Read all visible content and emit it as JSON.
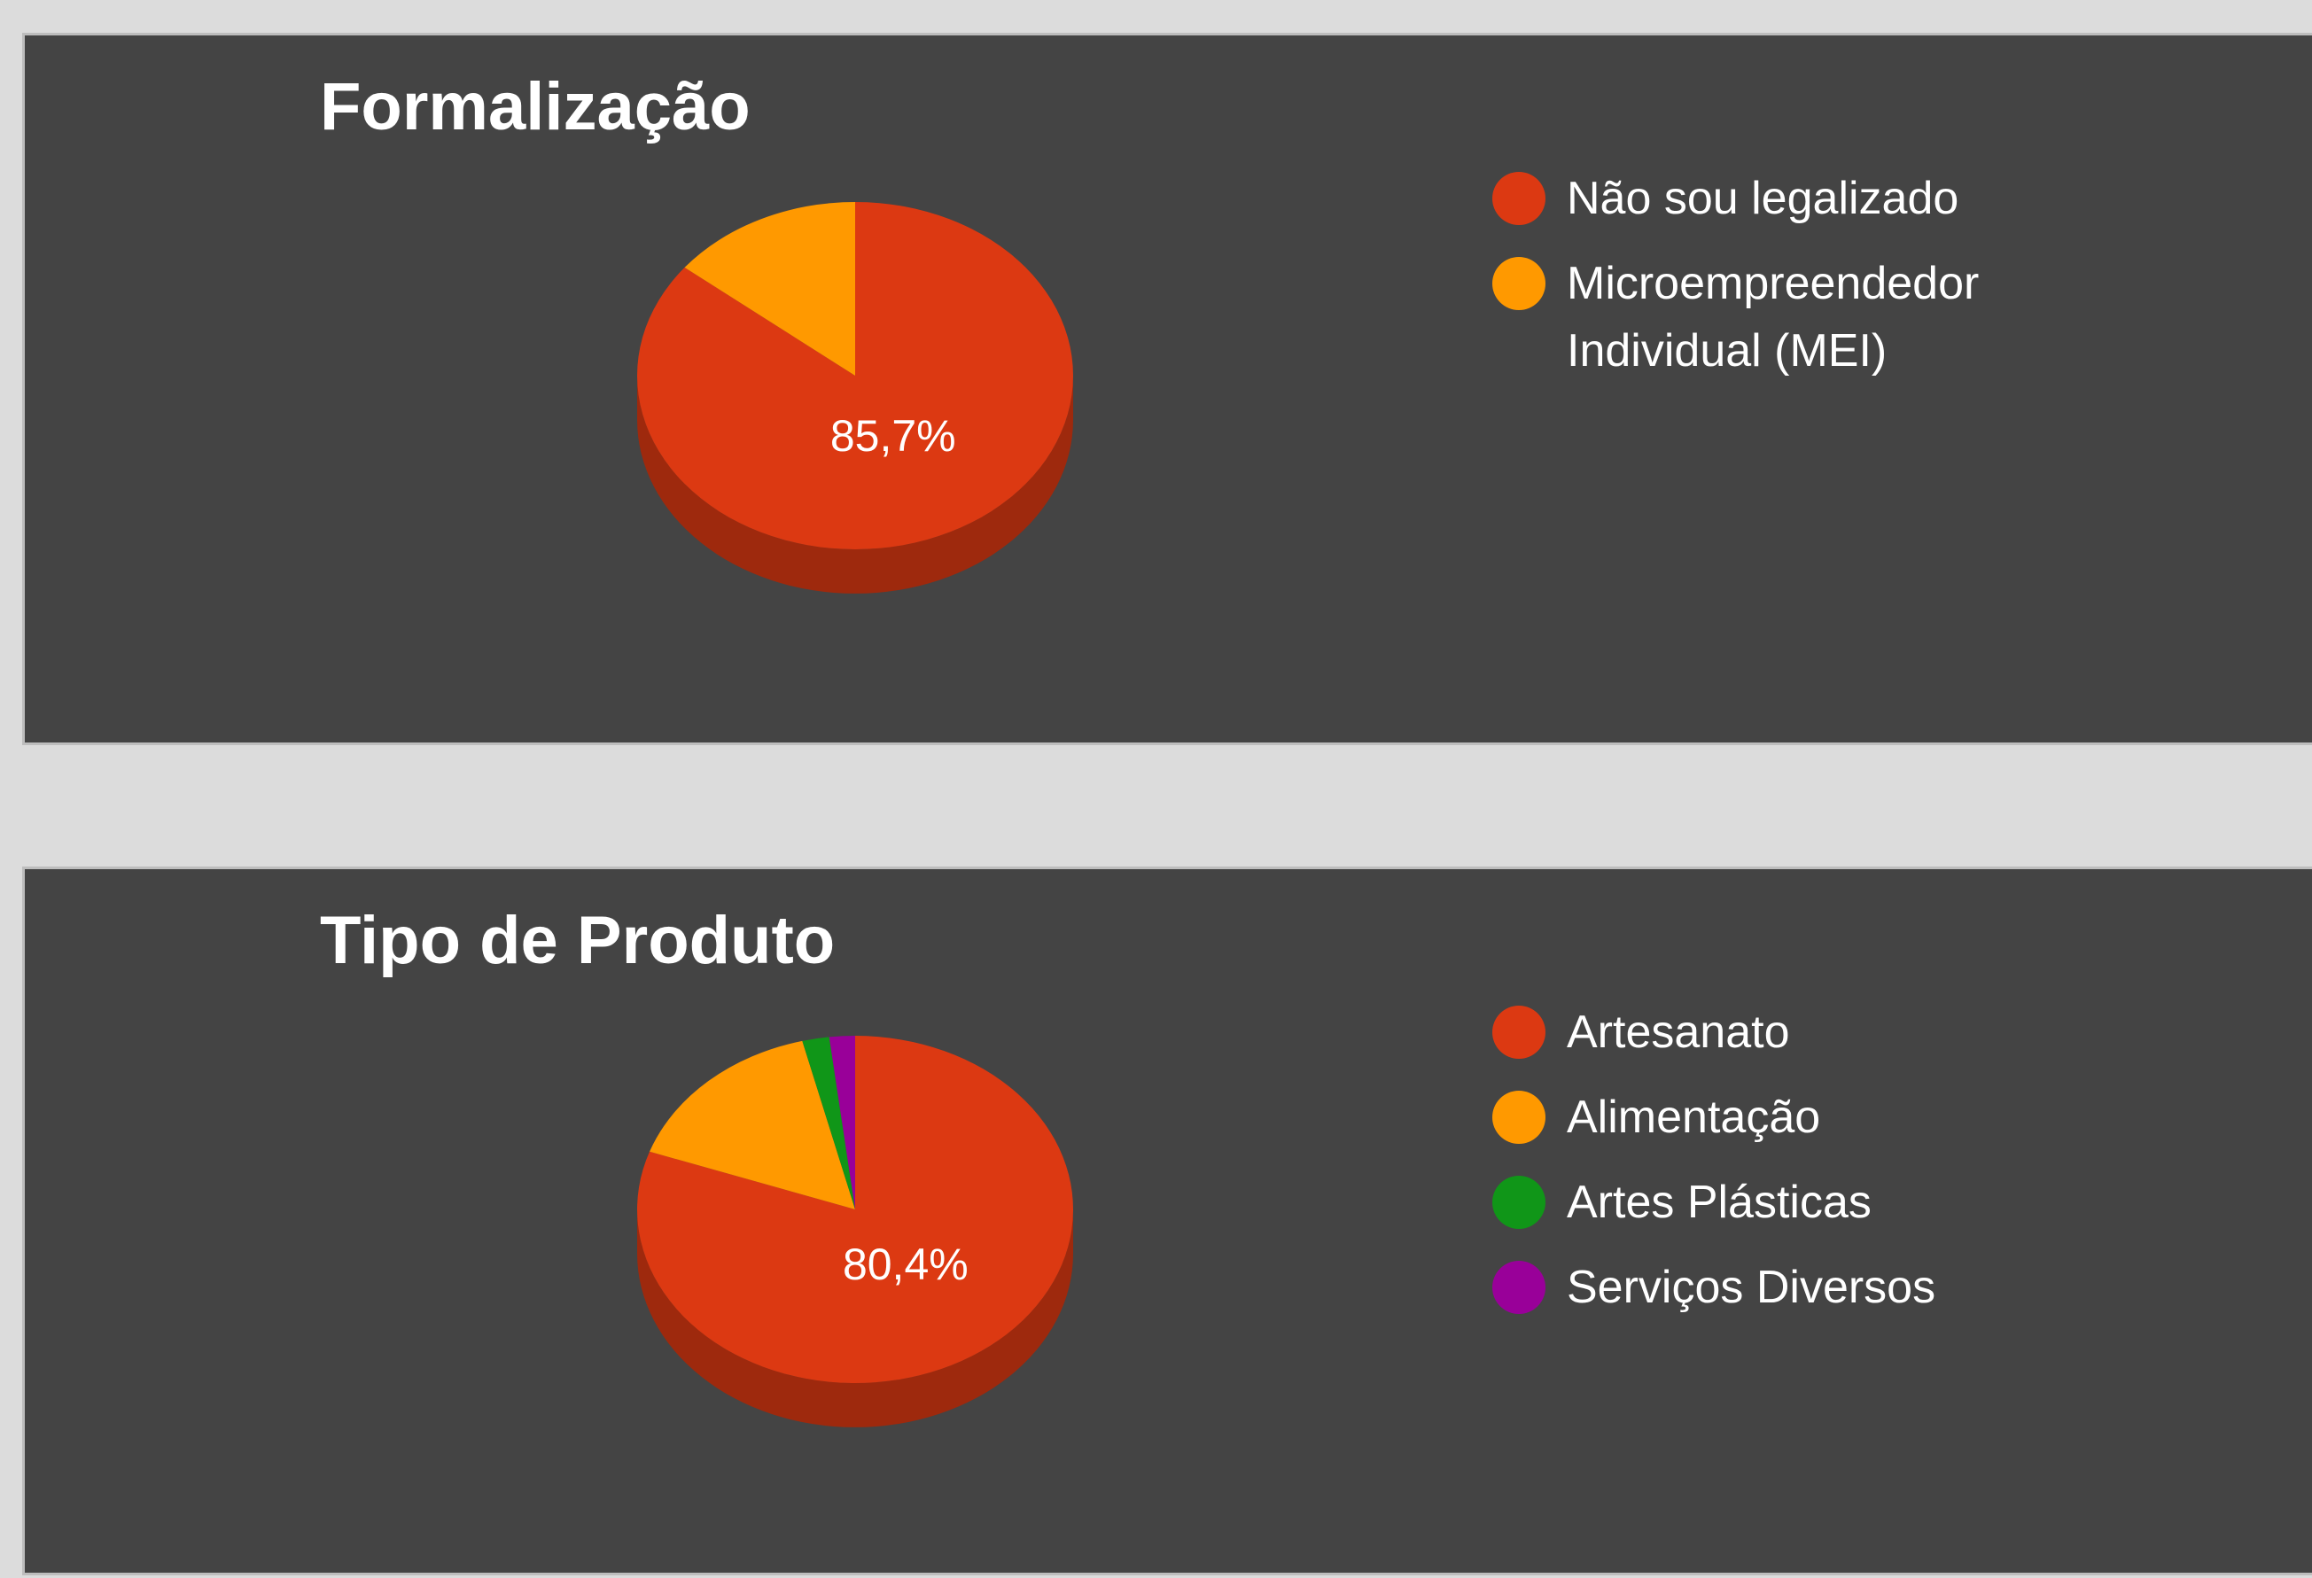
{
  "chart_data": [
    {
      "type": "pie3d",
      "title": "Formalização",
      "categories": [
        "Não sou legalizado",
        "Microempreendedor Individual (MEI)"
      ],
      "values": [
        85.7,
        14.3
      ],
      "value_labels": [
        "85,7%",
        null
      ],
      "colors": [
        "#dc3912",
        "#ff9900"
      ]
    },
    {
      "type": "pie3d",
      "title": "Tipo de Produto",
      "categories": [
        "Artesanato",
        "Alimentação",
        "Artes Plásticas",
        "Serviços Diversos"
      ],
      "values": [
        80.4,
        15.7,
        2.0,
        1.9
      ],
      "value_labels": [
        "80,4%",
        null,
        null,
        null
      ],
      "colors": [
        "#dc3912",
        "#ff9900",
        "#109618",
        "#990099"
      ]
    }
  ]
}
